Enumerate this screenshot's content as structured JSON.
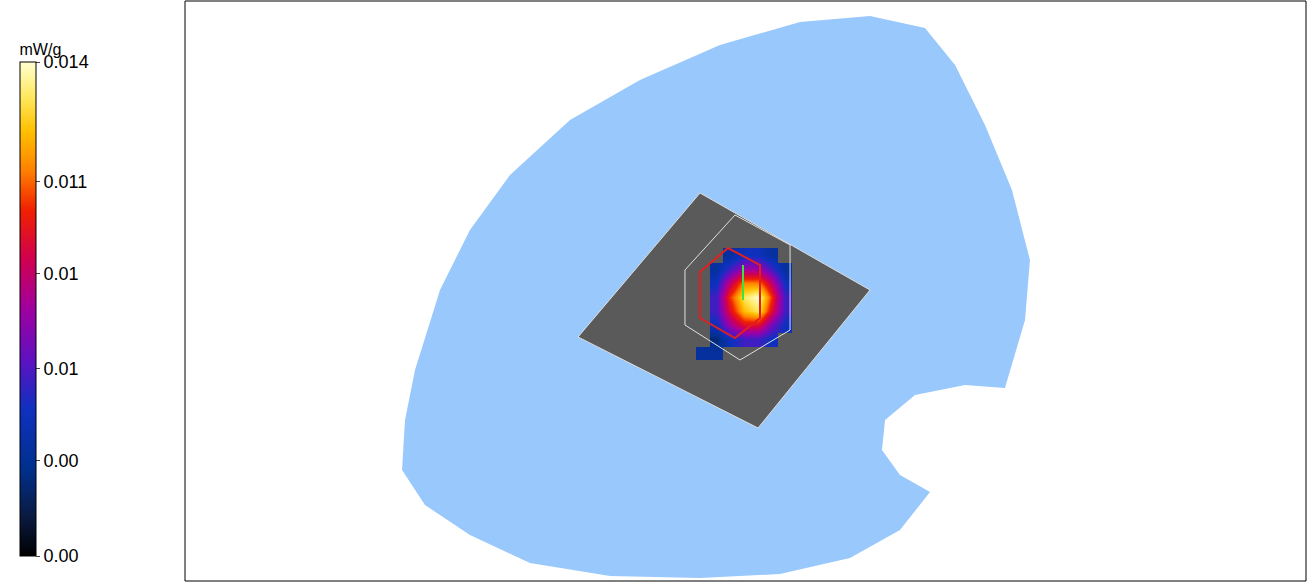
{
  "chart_data": {
    "type": "heatmap",
    "tick_labels": false,
    "cells": [
      [
        null,
        0.003,
        0.003,
        null,
        null,
        null,
        null,
        null
      ],
      [
        null,
        null,
        0.002,
        0.004,
        0.005,
        0.005,
        0.004,
        null
      ],
      [
        null,
        null,
        0.004,
        0.007,
        0.009,
        0.009,
        0.006,
        0.004
      ],
      [
        null,
        null,
        0.005,
        0.009,
        0.012,
        0.013,
        0.009,
        0.005
      ],
      [
        null,
        null,
        0.005,
        0.01,
        0.013,
        0.014,
        0.01,
        0.005
      ],
      [
        null,
        null,
        0.004,
        0.008,
        0.011,
        0.011,
        0.008,
        0.004
      ],
      [
        null,
        null,
        0.003,
        0.005,
        0.007,
        0.007,
        0.005,
        0.003
      ],
      [
        null,
        null,
        null,
        0.003,
        0.004,
        0.004,
        0.003,
        null
      ]
    ],
    "colorbar": {
      "title": "mW/g",
      "range": [
        0,
        0.014
      ],
      "ticks": [
        {
          "value": 0,
          "label": "0.00"
        },
        {
          "value": 0.0027,
          "label": "0.00"
        },
        {
          "value": 0.0053,
          "label": "0.01"
        },
        {
          "value": 0.008,
          "label": "0.01"
        },
        {
          "value": 0.0106,
          "label": "0.011"
        },
        0.014
      ]
    }
  }
}
